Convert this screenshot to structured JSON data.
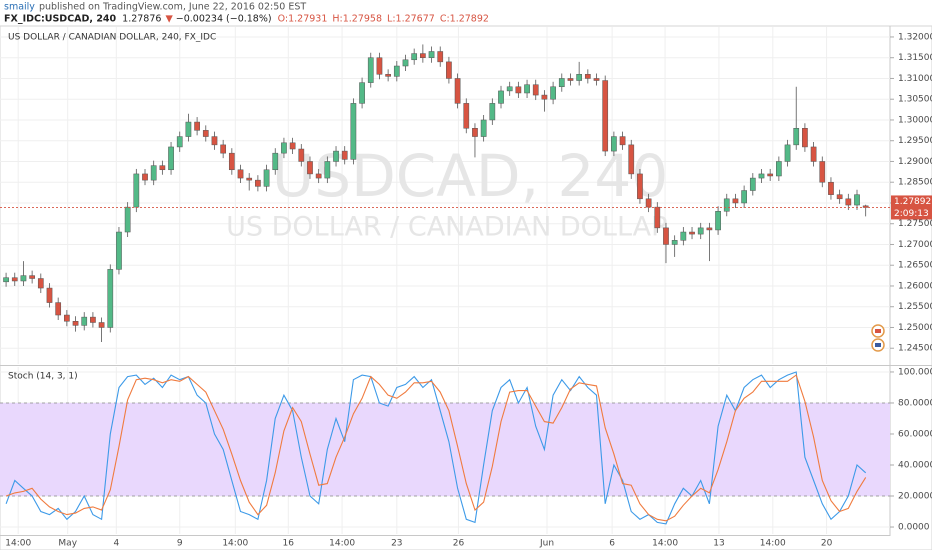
{
  "header": {
    "author": "smaily",
    "published": "published on TradingView.com, June 22, 2016 02:50 EST",
    "symbol": "FX_IDC:USDCAD, 240",
    "last": "1.27876",
    "arrow": "▼",
    "change": "−0.00234 (−0.18%)",
    "ohlc": [
      "O:1.27931",
      "H:1.27958",
      "L:1.27677",
      "C:1.27892"
    ]
  },
  "chart_data": [
    {
      "type": "candlestick",
      "title": "US DOLLAR / CANADIAN DOLLAR, 240, FX_IDC",
      "watermark": [
        "USDCAD, 240",
        "US DOLLAR / CANADIAN DOLLAR"
      ],
      "up_color": "#53b987",
      "down_color": "#d75442",
      "grid": true,
      "price_label": "1.27892",
      "countdown": "2:09:13",
      "xlim": [
        -0.7,
        101.8
      ],
      "ylim": [
        1.2412,
        1.3224
      ],
      "yticks": [
        {
          "value": 1.245,
          "label": "1.24500"
        },
        {
          "value": 1.25,
          "label": "1.25000"
        },
        {
          "value": 1.255,
          "label": "1.25500"
        },
        {
          "value": 1.26,
          "label": "1.26000"
        },
        {
          "value": 1.265,
          "label": "1.26500"
        },
        {
          "value": 1.27,
          "label": "1.27000"
        },
        {
          "value": 1.275,
          "label": "1.27500"
        },
        {
          "value": 1.28,
          "label": "1.28000"
        },
        {
          "value": 1.285,
          "label": "1.28500"
        },
        {
          "value": 1.29,
          "label": "1.29000"
        },
        {
          "value": 1.295,
          "label": "1.29500"
        },
        {
          "value": 1.3,
          "label": "1.30000"
        },
        {
          "value": 1.305,
          "label": "1.30500"
        },
        {
          "value": 1.31,
          "label": "1.31000"
        },
        {
          "value": 1.315,
          "label": "1.31500"
        },
        {
          "value": 1.32,
          "label": "1.32000"
        }
      ],
      "open": [
        1.261,
        1.262,
        1.2612,
        1.2625,
        1.2618,
        1.2595,
        1.256,
        1.253,
        1.2515,
        1.2505,
        1.2525,
        1.2512,
        1.25,
        1.264,
        1.273,
        1.279,
        1.287,
        1.2855,
        1.289,
        1.288,
        1.2935,
        1.296,
        1.2995,
        1.2975,
        1.296,
        1.294,
        1.292,
        1.288,
        1.286,
        1.2855,
        1.284,
        1.288,
        1.292,
        1.2945,
        1.293,
        1.29,
        1.287,
        1.286,
        1.29,
        1.2925,
        1.2905,
        1.304,
        1.309,
        1.315,
        1.311,
        1.3105,
        1.313,
        1.3145,
        1.316,
        1.315,
        1.3165,
        1.314,
        1.31,
        1.304,
        1.298,
        1.296,
        1.3,
        1.304,
        1.307,
        1.308,
        1.3065,
        1.3085,
        1.306,
        1.305,
        1.308,
        1.31,
        1.3095,
        1.311,
        1.31,
        1.3095,
        1.2925,
        1.296,
        1.294,
        1.287,
        1.281,
        1.279,
        1.274,
        1.27,
        1.271,
        1.273,
        1.2725,
        1.274,
        1.2735,
        1.278,
        1.281,
        1.28,
        1.283,
        1.286,
        1.287,
        1.2865,
        1.29,
        1.294,
        1.298,
        1.2935,
        1.29,
        1.285,
        1.282,
        1.281,
        1.2795,
        1.27931
      ],
      "high": [
        1.2632,
        1.2632,
        1.266,
        1.2637,
        1.263,
        1.2607,
        1.2572,
        1.2542,
        1.2527,
        1.2537,
        1.2537,
        1.2524,
        1.2652,
        1.2742,
        1.2802,
        1.2882,
        1.2882,
        1.2902,
        1.2902,
        1.2947,
        1.2972,
        1.3015,
        1.3007,
        1.2987,
        1.2972,
        1.2952,
        1.2932,
        1.2892,
        1.2872,
        1.2867,
        1.2892,
        1.2932,
        1.2957,
        1.2957,
        1.2942,
        1.2912,
        1.2882,
        1.2912,
        1.2937,
        1.2937,
        1.3052,
        1.3102,
        1.3162,
        1.3162,
        1.3122,
        1.3142,
        1.3157,
        1.3172,
        1.3182,
        1.3177,
        1.3177,
        1.3152,
        1.3112,
        1.3052,
        1.2992,
        1.3012,
        1.3052,
        1.3082,
        1.3092,
        1.3092,
        1.3097,
        1.3097,
        1.3072,
        1.3092,
        1.3112,
        1.3112,
        1.314,
        1.3122,
        1.3112,
        1.3107,
        1.2972,
        1.2972,
        1.2952,
        1.2882,
        1.2822,
        1.2802,
        1.2752,
        1.2722,
        1.2742,
        1.2742,
        1.2752,
        1.2752,
        1.2792,
        1.2822,
        1.2822,
        1.2842,
        1.2872,
        1.2882,
        1.2882,
        1.2912,
        1.2952,
        1.308,
        1.2992,
        1.2947,
        1.2912,
        1.2862,
        1.2832,
        1.2822,
        1.2832,
        1.27958
      ],
      "low": [
        1.2598,
        1.26,
        1.26,
        1.2606,
        1.2583,
        1.2548,
        1.2518,
        1.2503,
        1.249,
        1.2493,
        1.25,
        1.2465,
        1.2488,
        1.2628,
        1.2718,
        1.2778,
        1.2843,
        1.2843,
        1.2868,
        1.2868,
        1.2923,
        1.2948,
        1.2963,
        1.2948,
        1.2928,
        1.2908,
        1.2868,
        1.2848,
        1.283,
        1.2828,
        1.2828,
        1.2868,
        1.2908,
        1.2918,
        1.2888,
        1.2858,
        1.2848,
        1.2848,
        1.2888,
        1.2893,
        1.2893,
        1.3028,
        1.3078,
        1.3098,
        1.3093,
        1.3093,
        1.3118,
        1.3133,
        1.3138,
        1.3138,
        1.3128,
        1.3088,
        1.3028,
        1.2968,
        1.291,
        1.2948,
        1.2988,
        1.3028,
        1.3058,
        1.3053,
        1.3053,
        1.3048,
        1.302,
        1.3038,
        1.3068,
        1.3083,
        1.3083,
        1.3088,
        1.3083,
        1.2913,
        1.2913,
        1.2928,
        1.2858,
        1.2798,
        1.2778,
        1.2728,
        1.2655,
        1.267,
        1.2698,
        1.2713,
        1.2713,
        1.266,
        1.2723,
        1.2768,
        1.2788,
        1.2788,
        1.2818,
        1.2848,
        1.2853,
        1.2853,
        1.2888,
        1.2928,
        1.2923,
        1.2888,
        1.2838,
        1.2808,
        1.2798,
        1.2783,
        1.2783,
        1.27677
      ],
      "close": [
        1.262,
        1.2612,
        1.2625,
        1.2618,
        1.2595,
        1.256,
        1.253,
        1.2515,
        1.2505,
        1.2525,
        1.2512,
        1.25,
        1.264,
        1.273,
        1.279,
        1.287,
        1.2855,
        1.289,
        1.288,
        1.2935,
        1.296,
        1.2995,
        1.2975,
        1.296,
        1.294,
        1.292,
        1.288,
        1.286,
        1.2855,
        1.284,
        1.288,
        1.292,
        1.2945,
        1.293,
        1.29,
        1.287,
        1.286,
        1.29,
        1.2925,
        1.2905,
        1.304,
        1.309,
        1.315,
        1.311,
        1.3105,
        1.313,
        1.3145,
        1.316,
        1.315,
        1.3165,
        1.314,
        1.31,
        1.304,
        1.298,
        1.296,
        1.3,
        1.304,
        1.307,
        1.308,
        1.3065,
        1.3085,
        1.306,
        1.305,
        1.308,
        1.31,
        1.3095,
        1.311,
        1.31,
        1.3095,
        1.2925,
        1.296,
        1.294,
        1.287,
        1.281,
        1.279,
        1.274,
        1.27,
        1.271,
        1.273,
        1.2725,
        1.274,
        1.2735,
        1.278,
        1.281,
        1.28,
        1.283,
        1.286,
        1.287,
        1.2865,
        1.29,
        1.294,
        1.298,
        1.2935,
        1.29,
        1.285,
        1.282,
        1.281,
        1.2795,
        1.282,
        1.27892
      ]
    },
    {
      "type": "line",
      "title": "Stoch (14, 3, 1)",
      "grid": true,
      "band": [
        20,
        80
      ],
      "band_color": "#e9d8fd",
      "xlim": [
        -0.7,
        101.8
      ],
      "ylim": [
        -4.5,
        103.2
      ],
      "yticks": [
        {
          "value": 0,
          "label": "0.0000"
        },
        {
          "value": 20,
          "label": "20.0000"
        },
        {
          "value": 40,
          "label": "40.0000"
        },
        {
          "value": 60,
          "label": "60.0000"
        },
        {
          "value": 80,
          "label": "80.0000"
        },
        {
          "value": 100,
          "label": "100.0000"
        }
      ],
      "xticks": [
        {
          "value": 1.4,
          "label": "14:00"
        },
        {
          "value": 7.1,
          "label": "May"
        },
        {
          "value": 12.7,
          "label": "4"
        },
        {
          "value": 20.0,
          "label": "9"
        },
        {
          "value": 26.4,
          "label": "14:00"
        },
        {
          "value": 32.5,
          "label": "16"
        },
        {
          "value": 38.7,
          "label": "14:00"
        },
        {
          "value": 45.0,
          "label": "23"
        },
        {
          "value": 52.1,
          "label": "26"
        },
        {
          "value": 62.3,
          "label": "Jun"
        },
        {
          "value": 69.8,
          "label": "6"
        },
        {
          "value": 75.9,
          "label": "14:00"
        },
        {
          "value": 82.1,
          "label": "13"
        },
        {
          "value": 88.3,
          "label": "14:00"
        },
        {
          "value": 94.5,
          "label": "20"
        }
      ],
      "series": [
        {
          "color": "#3d9ae8",
          "values": [
            15,
            30,
            25,
            20,
            10,
            8,
            12,
            5,
            10,
            20,
            8,
            5,
            60,
            90,
            97,
            98,
            92,
            96,
            90,
            98,
            95,
            97,
            85,
            80,
            60,
            50,
            30,
            10,
            8,
            5,
            30,
            70,
            85,
            75,
            45,
            20,
            15,
            50,
            70,
            55,
            95,
            98,
            97,
            80,
            78,
            90,
            92,
            97,
            90,
            95,
            75,
            55,
            25,
            5,
            3,
            40,
            75,
            90,
            95,
            80,
            90,
            65,
            50,
            85,
            95,
            88,
            97,
            90,
            85,
            15,
            40,
            30,
            10,
            5,
            8,
            3,
            2,
            15,
            25,
            20,
            30,
            15,
            65,
            85,
            75,
            90,
            95,
            98,
            90,
            95,
            98,
            100,
            45,
            30,
            15,
            5,
            10,
            20,
            40,
            35
          ]
        },
        {
          "color": "#f07b3f",
          "values": [
            20,
            22,
            23,
            25,
            18,
            13,
            10,
            8,
            9,
            12,
            13,
            11,
            24,
            52,
            82,
            95,
            96,
            95,
            93,
            95,
            94,
            97,
            92,
            87,
            75,
            63,
            47,
            30,
            16,
            8,
            14,
            35,
            62,
            77,
            68,
            47,
            27,
            28,
            45,
            58,
            73,
            83,
            97,
            92,
            85,
            83,
            87,
            93,
            93,
            94,
            87,
            75,
            52,
            28,
            11,
            16,
            39,
            68,
            87,
            88,
            88,
            78,
            68,
            67,
            77,
            89,
            93,
            92,
            91,
            64,
            47,
            28,
            27,
            15,
            8,
            5,
            4,
            7,
            14,
            20,
            25,
            22,
            37,
            55,
            75,
            83,
            87,
            94,
            94,
            94,
            94,
            98,
            81,
            58,
            30,
            17,
            10,
            12,
            23,
            32
          ]
        }
      ]
    }
  ]
}
